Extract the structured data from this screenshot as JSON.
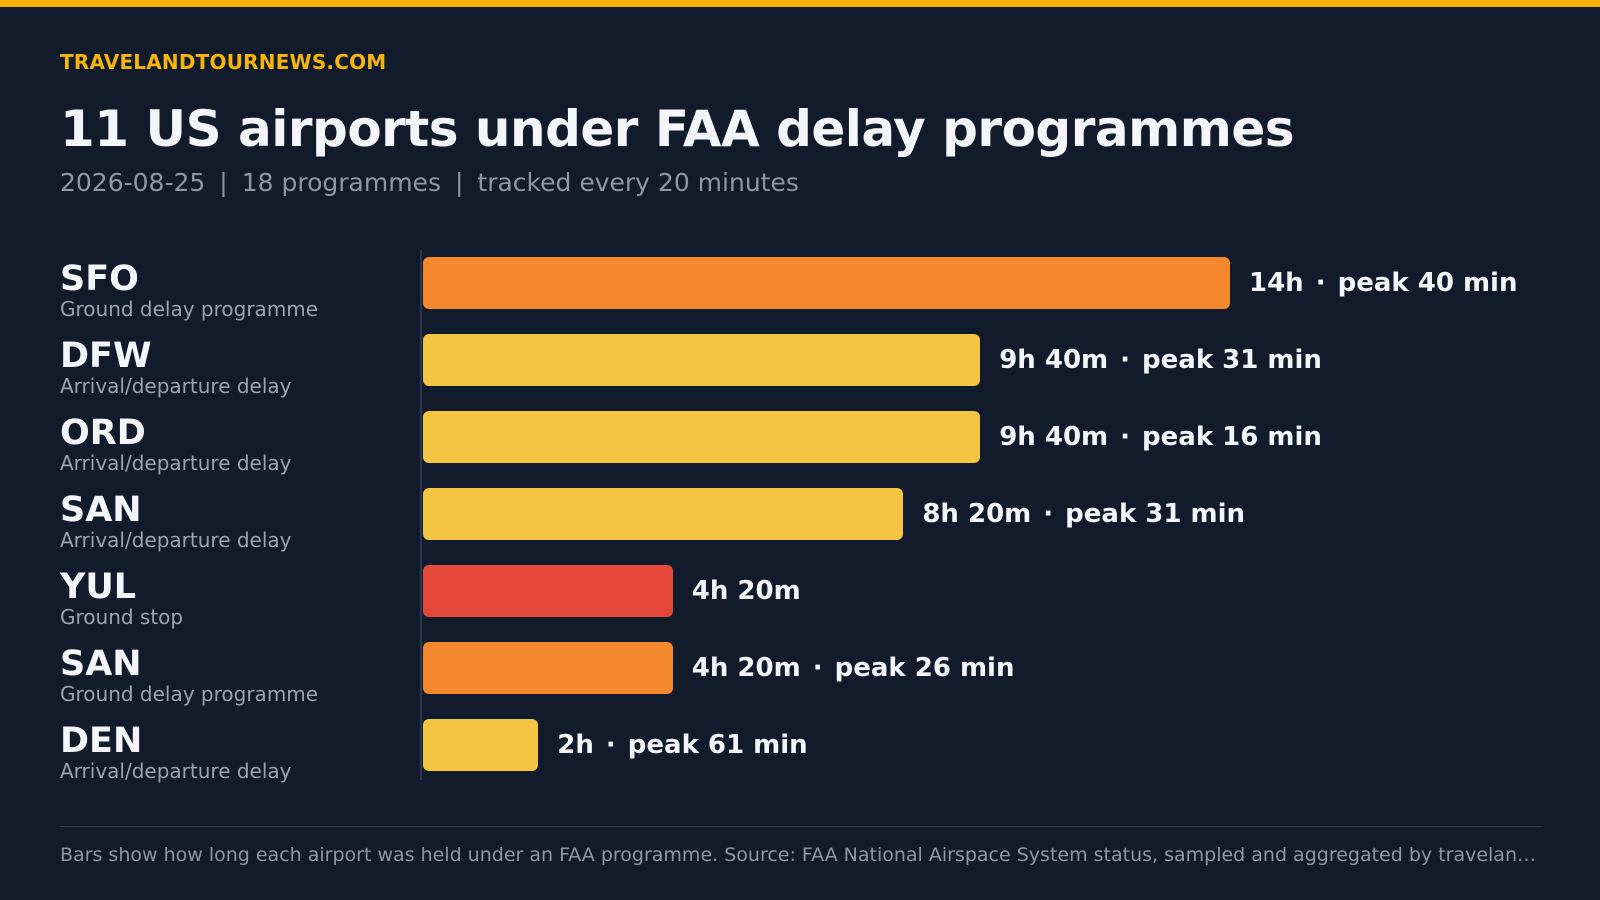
{
  "brand": "TRAVELANDTOURNEWS.COM",
  "title": "11 US airports under FAA delay programmes",
  "subtitle": {
    "date": "2026-08-25",
    "programmes": "18 programmes",
    "cadence": "tracked every 20 minutes",
    "separator": "|"
  },
  "colors": {
    "background": "#111b2c",
    "accent": "#f5b50d",
    "ground_delay_programme": "#f5872e",
    "arrival_departure_delay": "#f4c542",
    "ground_stop": "#e5473a"
  },
  "footnote": "Bars show how long each airport was held under an FAA programme. Source: FAA National Airspace System status, sampled and aggregated by travelandtour…",
  "chart_data": {
    "type": "bar",
    "orientation": "horizontal",
    "units": "hours",
    "xlim": [
      0,
      14
    ],
    "grid": false,
    "categories": [
      "SFO",
      "DFW",
      "ORD",
      "SAN",
      "YUL",
      "SAN",
      "DEN"
    ],
    "rows": [
      {
        "code": "SFO",
        "programme": "Ground delay programme",
        "hours": 14,
        "duration_label": "14h",
        "peak_label": "peak 40 min",
        "color": "#f5872e"
      },
      {
        "code": "DFW",
        "programme": "Arrival/departure delay",
        "hours": 9.667,
        "duration_label": "9h 40m",
        "peak_label": "peak 31 min",
        "color": "#f4c542"
      },
      {
        "code": "ORD",
        "programme": "Arrival/departure delay",
        "hours": 9.667,
        "duration_label": "9h 40m",
        "peak_label": "peak 16 min",
        "color": "#f4c542"
      },
      {
        "code": "SAN",
        "programme": "Arrival/departure delay",
        "hours": 8.333,
        "duration_label": "8h 20m",
        "peak_label": "peak 31 min",
        "color": "#f4c542"
      },
      {
        "code": "YUL",
        "programme": "Ground stop",
        "hours": 4.333,
        "duration_label": "4h 20m",
        "peak_label": "",
        "color": "#e5473a"
      },
      {
        "code": "SAN",
        "programme": "Ground delay programme",
        "hours": 4.333,
        "duration_label": "4h 20m",
        "peak_label": "peak 26 min",
        "color": "#f5872e"
      },
      {
        "code": "DEN",
        "programme": "Arrival/departure delay",
        "hours": 2,
        "duration_label": "2h",
        "peak_label": "peak 61 min",
        "color": "#f4c542"
      }
    ]
  }
}
